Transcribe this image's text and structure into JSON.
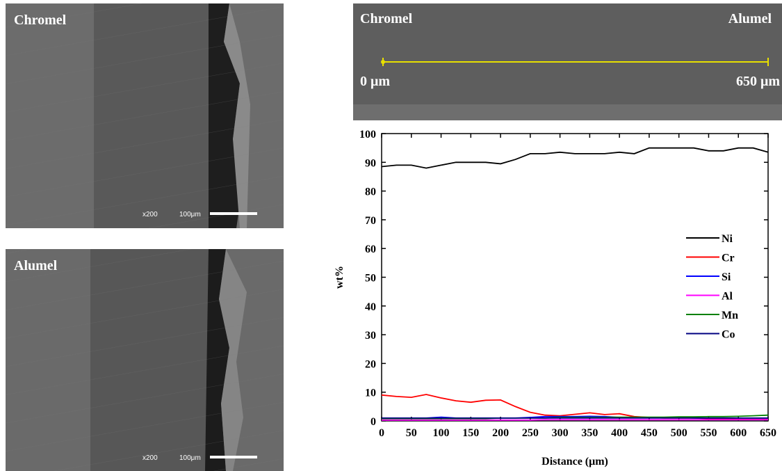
{
  "images": [
    {
      "label": "Chromel",
      "magnification": "x200",
      "scale_bar": "100μm"
    },
    {
      "label": "Alumel",
      "magnification": "x200",
      "scale_bar": "100μm"
    }
  ],
  "line_image": {
    "left_label": "Chromel",
    "right_label": "Alumel",
    "start_label": "0 μm",
    "end_label": "650 μm"
  },
  "chart_data": {
    "type": "line",
    "x_label": "Distance (μm)",
    "y_label": "wt%",
    "x": [
      0,
      25,
      50,
      75,
      100,
      125,
      150,
      175,
      200,
      225,
      250,
      275,
      300,
      325,
      350,
      375,
      400,
      425,
      450,
      475,
      500,
      525,
      550,
      575,
      600,
      625,
      650
    ],
    "series": [
      {
        "name": "Ni",
        "color": "#000000",
        "values": [
          88.5,
          89,
          89,
          88,
          89,
          90,
          90,
          90,
          89.5,
          91,
          93,
          93,
          93.5,
          93,
          93,
          93,
          93.5,
          93,
          95,
          95,
          95,
          95,
          94,
          94,
          95,
          95,
          93.5
        ]
      },
      {
        "name": "Cr",
        "color": "#ff0000",
        "values": [
          9,
          8.5,
          8.2,
          9.2,
          8,
          7,
          6.5,
          7.2,
          7.3,
          5,
          3,
          2,
          1.8,
          2.3,
          2.8,
          2.2,
          2.5,
          1.5,
          1.2,
          1,
          1,
          1,
          0.8,
          0.8,
          0.5,
          0.5,
          0.5
        ]
      },
      {
        "name": "Si",
        "color": "#0000ff",
        "values": [
          1,
          1,
          1,
          1,
          1.3,
          1,
          1,
          1,
          1,
          1,
          1.2,
          1.5,
          1.5,
          1.5,
          1.6,
          1.5,
          1.2,
          1.2,
          1.2,
          1.2,
          1.2,
          1,
          1,
          1,
          1,
          1,
          1
        ]
      },
      {
        "name": "Al",
        "color": "#ff00ff",
        "values": [
          0.3,
          0.3,
          0.3,
          0.3,
          0.3,
          0.3,
          0.3,
          0.3,
          0.3,
          0.3,
          0.3,
          0.4,
          0.4,
          0.4,
          0.4,
          0.4,
          0.4,
          0.4,
          0.4,
          0.4,
          0.4,
          0.4,
          0.4,
          0.4,
          0.4,
          0.4,
          0.4
        ]
      },
      {
        "name": "Mn",
        "color": "#008000",
        "values": [
          0.8,
          0.8,
          0.8,
          0.8,
          0.8,
          0.8,
          0.8,
          0.8,
          1,
          1,
          1,
          1,
          1.2,
          1.2,
          1.2,
          1.2,
          1.3,
          1.3,
          1.3,
          1.3,
          1.4,
          1.4,
          1.5,
          1.5,
          1.6,
          1.8,
          2
        ]
      },
      {
        "name": "Co",
        "color": "#000080",
        "values": [
          1,
          1,
          1,
          1,
          1,
          1,
          1,
          1,
          1,
          1,
          1,
          1,
          1,
          1,
          1,
          1,
          1,
          1,
          1,
          1,
          1,
          1,
          1,
          1,
          1,
          1,
          1
        ]
      }
    ],
    "xlim": [
      0,
      650
    ],
    "xticks": [
      0,
      50,
      100,
      150,
      200,
      250,
      300,
      350,
      400,
      450,
      500,
      550,
      600,
      650
    ],
    "ylim": [
      0,
      100
    ],
    "yticks": [
      0,
      10,
      20,
      30,
      40,
      50,
      60,
      70,
      80,
      90,
      100
    ]
  }
}
